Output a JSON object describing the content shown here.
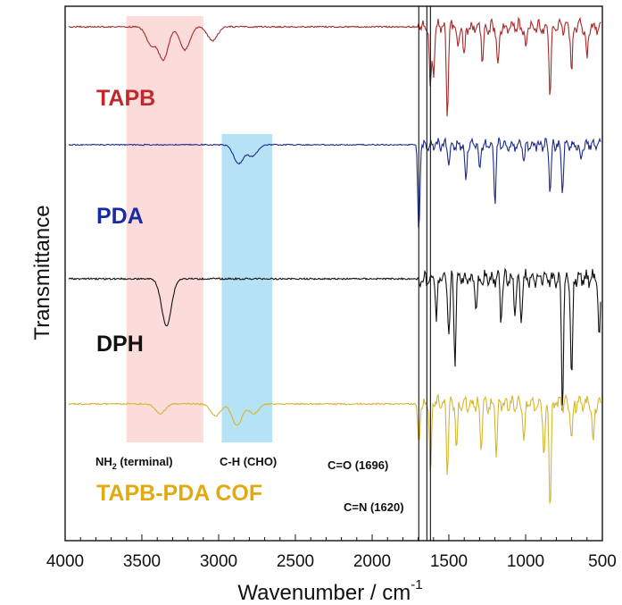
{
  "chart_data": {
    "type": "line",
    "title": "",
    "xlabel": "Wavenumber / cm",
    "xlabel_superscript": "-1",
    "ylabel": "Transmittance",
    "xlim": [
      4000,
      500
    ],
    "x_reversed": true,
    "x_ticks": [
      4000,
      3500,
      3000,
      2500,
      2000,
      1500,
      1000,
      500
    ],
    "y_ticks": [],
    "series": [
      {
        "name": "TAPB",
        "color": "#a52a2a",
        "label_color": "#c0282d",
        "baseline": 0.0,
        "peaks": [
          [
            3440,
            0.15
          ],
          [
            3360,
            0.28
          ],
          [
            3220,
            0.2
          ],
          [
            3040,
            0.12
          ],
          [
            1620,
            0.55
          ],
          [
            1600,
            0.4
          ],
          [
            1510,
            0.8
          ],
          [
            1440,
            0.25
          ],
          [
            1400,
            0.3
          ],
          [
            1280,
            0.3
          ],
          [
            1180,
            0.35
          ],
          [
            1000,
            0.2
          ],
          [
            840,
            0.6
          ],
          [
            700,
            0.4
          ],
          [
            600,
            0.3
          ]
        ]
      },
      {
        "name": "PDA",
        "color": "#1a2b8c",
        "label_color": "#1a2ba0",
        "baseline": 0.0,
        "peaks": [
          [
            2870,
            0.2
          ],
          [
            2780,
            0.12
          ],
          [
            1696,
            0.98
          ],
          [
            1500,
            0.2
          ],
          [
            1390,
            0.4
          ],
          [
            1300,
            0.3
          ],
          [
            1200,
            0.6
          ],
          [
            1010,
            0.15
          ],
          [
            840,
            0.5
          ],
          [
            760,
            0.5
          ],
          [
            640,
            0.15
          ]
        ]
      },
      {
        "name": "DPH",
        "color": "#111111",
        "label_color": "#111111",
        "baseline": 0.0,
        "peaks": [
          [
            3340,
            0.35
          ],
          [
            1580,
            0.3
          ],
          [
            1500,
            0.4
          ],
          [
            1460,
            0.6
          ],
          [
            1320,
            0.25
          ],
          [
            1160,
            0.3
          ],
          [
            1070,
            0.25
          ],
          [
            1030,
            0.3
          ],
          [
            760,
            0.95
          ],
          [
            700,
            0.8
          ],
          [
            520,
            0.45
          ]
        ]
      },
      {
        "name": "TAPB-PDA COF",
        "color": "#d6b630",
        "label_color": "#e0aa10",
        "baseline": 0.0,
        "peaks": [
          [
            3380,
            0.08
          ],
          [
            3020,
            0.1
          ],
          [
            2880,
            0.18
          ],
          [
            2770,
            0.08
          ],
          [
            1696,
            0.35
          ],
          [
            1620,
            0.6
          ],
          [
            1510,
            0.6
          ],
          [
            1450,
            0.35
          ],
          [
            1290,
            0.35
          ],
          [
            1190,
            0.4
          ],
          [
            1010,
            0.3
          ],
          [
            880,
            0.45
          ],
          [
            840,
            0.85
          ],
          [
            700,
            0.3
          ],
          [
            560,
            0.35
          ]
        ]
      }
    ],
    "highlight_bands": [
      {
        "label": "NH2 (terminal)",
        "from": 3600,
        "to": 3100,
        "color": "#fbdcda"
      },
      {
        "label": "C-H (CHO)",
        "from": 2980,
        "to": 2650,
        "color": "#b6e2f5"
      }
    ],
    "reference_lines": [
      {
        "label": "C=O (1696)",
        "x": 1696
      },
      {
        "label": "C=N (1620)",
        "x": 1620
      }
    ]
  },
  "labels": {
    "nh2_prefix": "NH",
    "nh2_sub": "2",
    "nh2_suffix": " (terminal)",
    "ch_cho": "C-H (CHO)",
    "co": "C=O (1696)",
    "cn": "C=N (1620)"
  }
}
